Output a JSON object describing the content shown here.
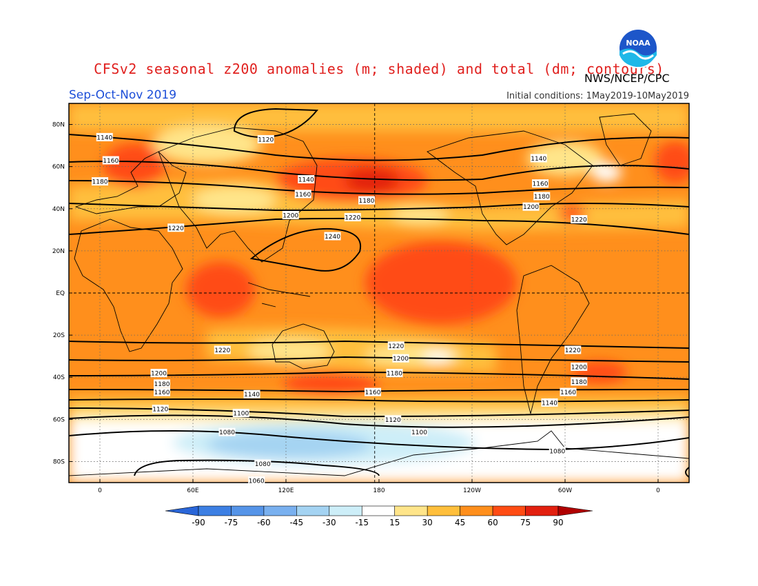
{
  "header": {
    "title": "CFSv2 seasonal z200 anomalies (m; shaded) and total (dm; contours)",
    "agency": "NWS/NCEP/CPC",
    "season": "Sep-Oct-Nov 2019",
    "initial_conditions": "Initial conditions: 1May2019-10May2019",
    "logo_text": "NOAA"
  },
  "map": {
    "lat_labels": [
      "80N",
      "60N",
      "40N",
      "20N",
      "EQ",
      "20S",
      "40S",
      "60S",
      "80S"
    ],
    "lat_values": [
      80,
      60,
      40,
      20,
      0,
      -20,
      -40,
      -60,
      -80
    ],
    "lon_labels": [
      "0",
      "60E",
      "120E",
      "180",
      "120W",
      "60W",
      "0"
    ],
    "lon_values": [
      0,
      60,
      120,
      180,
      240,
      300,
      360
    ],
    "contour_labels": [
      {
        "text": "1140",
        "lon": 3,
        "lat": 74
      },
      {
        "text": "1160",
        "lon": 7,
        "lat": 63
      },
      {
        "text": "1180",
        "lon": 0,
        "lat": 53
      },
      {
        "text": "1120",
        "lon": 107,
        "lat": 73
      },
      {
        "text": "1140",
        "lon": 133,
        "lat": 54
      },
      {
        "text": "1160",
        "lon": 131,
        "lat": 47
      },
      {
        "text": "1180",
        "lon": 172,
        "lat": 44
      },
      {
        "text": "1200",
        "lon": 123,
        "lat": 37
      },
      {
        "text": "1220",
        "lon": 163,
        "lat": 36
      },
      {
        "text": "1220",
        "lon": 49,
        "lat": 31
      },
      {
        "text": "1240",
        "lon": 150,
        "lat": 27
      },
      {
        "text": "1140",
        "lon": 283,
        "lat": 64
      },
      {
        "text": "1160",
        "lon": 284,
        "lat": 52
      },
      {
        "text": "1180",
        "lon": 285,
        "lat": 46
      },
      {
        "text": "1200",
        "lon": 278,
        "lat": 41
      },
      {
        "text": "1220",
        "lon": 309,
        "lat": 35
      },
      {
        "text": "1220",
        "lon": 79,
        "lat": -27
      },
      {
        "text": "1220",
        "lon": 191,
        "lat": -25
      },
      {
        "text": "1200",
        "lon": 194,
        "lat": -31
      },
      {
        "text": "1220",
        "lon": 305,
        "lat": -27
      },
      {
        "text": "1200",
        "lon": 309,
        "lat": -35
      },
      {
        "text": "1200",
        "lon": 38,
        "lat": -38
      },
      {
        "text": "1180",
        "lon": 40,
        "lat": -43
      },
      {
        "text": "1160",
        "lon": 40,
        "lat": -47
      },
      {
        "text": "1140",
        "lon": 98,
        "lat": -48
      },
      {
        "text": "1120",
        "lon": 39,
        "lat": -55
      },
      {
        "text": "1180",
        "lon": 190,
        "lat": -38
      },
      {
        "text": "1160",
        "lon": 176,
        "lat": -47
      },
      {
        "text": "1180",
        "lon": 309,
        "lat": -42
      },
      {
        "text": "1160",
        "lon": 302,
        "lat": -47
      },
      {
        "text": "1140",
        "lon": 290,
        "lat": -52
      },
      {
        "text": "1100",
        "lon": 91,
        "lat": -57
      },
      {
        "text": "1120",
        "lon": 189,
        "lat": -60
      },
      {
        "text": "1100",
        "lon": 206,
        "lat": -66
      },
      {
        "text": "1080",
        "lon": 82,
        "lat": -66
      },
      {
        "text": "1080",
        "lon": 295,
        "lat": -75
      },
      {
        "text": "1080",
        "lon": 105,
        "lat": -81
      },
      {
        "text": "1060",
        "lon": 101,
        "lat": -89
      }
    ]
  },
  "colorbar": {
    "labels": [
      "-90",
      "-75",
      "-60",
      "-45",
      "-30",
      "-15",
      "15",
      "30",
      "45",
      "60",
      "75",
      "90"
    ],
    "colors": [
      "#2a66d8",
      "#3d7fe3",
      "#5594e8",
      "#79b0ef",
      "#a4d3f2",
      "#cdeef8",
      "#ffffff",
      "#ffe58a",
      "#ffbf3c",
      "#ff8f1c",
      "#ff4c14",
      "#e2200f",
      "#b00000"
    ]
  },
  "chart_data": {
    "type": "heatmap",
    "title": "CFSv2 seasonal z200 anomalies (m; shaded) and total (dm; contours)",
    "subtitle": "Sep-Oct-Nov 2019",
    "xlabel": "",
    "ylabel": "",
    "x_ticks": [
      "0",
      "60E",
      "120E",
      "180",
      "120W",
      "60W",
      "0"
    ],
    "y_ticks": [
      "80N",
      "60N",
      "40N",
      "20N",
      "EQ",
      "20S",
      "40S",
      "60S",
      "80S"
    ],
    "contour_levels_dm": [
      1060,
      1080,
      1100,
      1120,
      1140,
      1160,
      1180,
      1200,
      1220,
      1240
    ],
    "anomaly_levels_m": [
      -90,
      -75,
      -60,
      -45,
      -30,
      -15,
      15,
      30,
      45,
      60,
      75,
      90
    ]
  }
}
